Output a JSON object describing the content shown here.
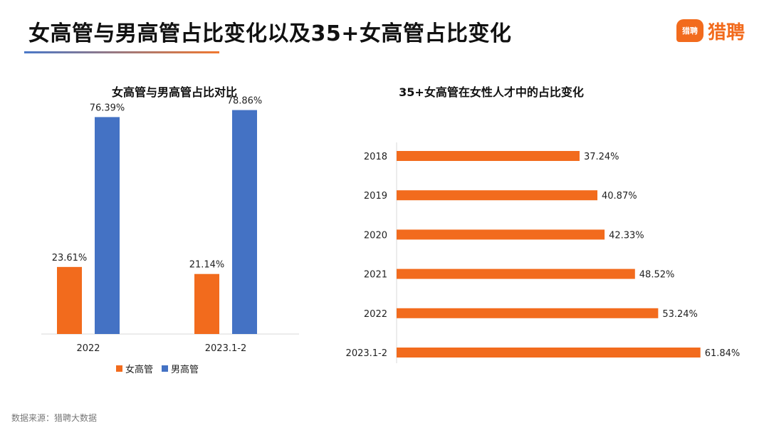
{
  "header": {
    "title": "女高管与男高管占比变化以及35+女高管占比变化",
    "logo_badge": "猎聘",
    "logo_text": "猎聘"
  },
  "footer": {
    "source": "数据来源：猎聘大数据"
  },
  "colors": {
    "orange": "#f26b1d",
    "blue": "#4472c4"
  },
  "chart_data": [
    {
      "type": "bar",
      "title": "女高管与男高管占比对比",
      "categories": [
        "2022",
        "2023.1-2"
      ],
      "series": [
        {
          "name": "女高管",
          "values": [
            23.61,
            21.14
          ],
          "labels": [
            "23.61%",
            "21.14%"
          ],
          "color": "#f26b1d"
        },
        {
          "name": "男高管",
          "values": [
            76.39,
            78.86
          ],
          "labels": [
            "76.39%",
            "78.86%"
          ],
          "color": "#4472c4"
        }
      ],
      "ylim": [
        0,
        80
      ],
      "legend": "bottom",
      "grid": false
    },
    {
      "type": "bar",
      "orientation": "horizontal",
      "title": "35+女高管在女性人才中的占比变化",
      "categories": [
        "2018",
        "2019",
        "2020",
        "2021",
        "2022",
        "2023.1-2"
      ],
      "values": [
        37.24,
        40.87,
        42.33,
        48.52,
        53.24,
        61.84
      ],
      "labels": [
        "37.24%",
        "40.87%",
        "42.33%",
        "48.52%",
        "53.24%",
        "61.84%"
      ],
      "color": "#f26b1d",
      "xlim": [
        0,
        70
      ],
      "grid": false
    }
  ]
}
